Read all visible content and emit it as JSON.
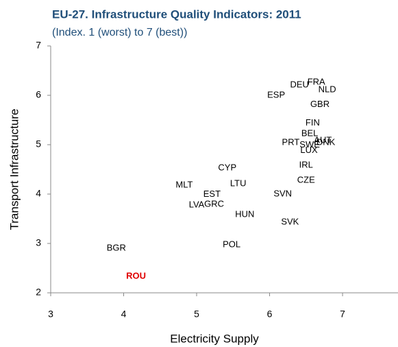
{
  "chart_data": {
    "type": "scatter",
    "title": "EU-27. Infrastructure Quality Indicators: 2011",
    "subtitle": "(Index. 1 (worst) to 7 (best))",
    "x_label": "Electricity Supply",
    "y_label": "Transport Infrastructure",
    "labels": [
      "FRA",
      "DEU",
      "NLD",
      "ESP",
      "GBR",
      "FIN",
      "BEL",
      "PRT",
      "SWE",
      "AUT",
      "DNK",
      "LUX",
      "IRL",
      "CZE",
      "CYP",
      "LTU",
      "MLT",
      "SVN",
      "EST",
      "LVA",
      "GRC",
      "HUN",
      "SVK",
      "POL",
      "BGR",
      "ROU"
    ],
    "x": [
      6.64,
      6.41,
      6.79,
      6.09,
      6.69,
      6.59,
      6.55,
      6.29,
      6.55,
      6.73,
      6.77,
      6.54,
      6.5,
      6.5,
      5.42,
      5.57,
      4.83,
      6.18,
      5.21,
      5.0,
      5.24,
      5.66,
      6.28,
      5.48,
      3.9,
      4.17
    ],
    "y": [
      6.26,
      6.21,
      6.11,
      6.0,
      5.81,
      5.44,
      5.22,
      5.04,
      4.99,
      5.08,
      5.04,
      4.88,
      4.58,
      4.28,
      4.53,
      4.21,
      4.18,
      4.0,
      3.99,
      3.78,
      3.79,
      3.58,
      3.43,
      2.97,
      2.9,
      2.33
    ],
    "label_color": "#000000",
    "highlight": "ROU",
    "highlight_color": "#e00000",
    "title_color": "#1f4e79",
    "xlim": [
      3,
      7.76
    ],
    "xticks": [
      3,
      4,
      5,
      6,
      7
    ],
    "ylim": [
      2,
      7
    ],
    "yticks": [
      2,
      3,
      4,
      5,
      6,
      7
    ],
    "grid": false
  }
}
